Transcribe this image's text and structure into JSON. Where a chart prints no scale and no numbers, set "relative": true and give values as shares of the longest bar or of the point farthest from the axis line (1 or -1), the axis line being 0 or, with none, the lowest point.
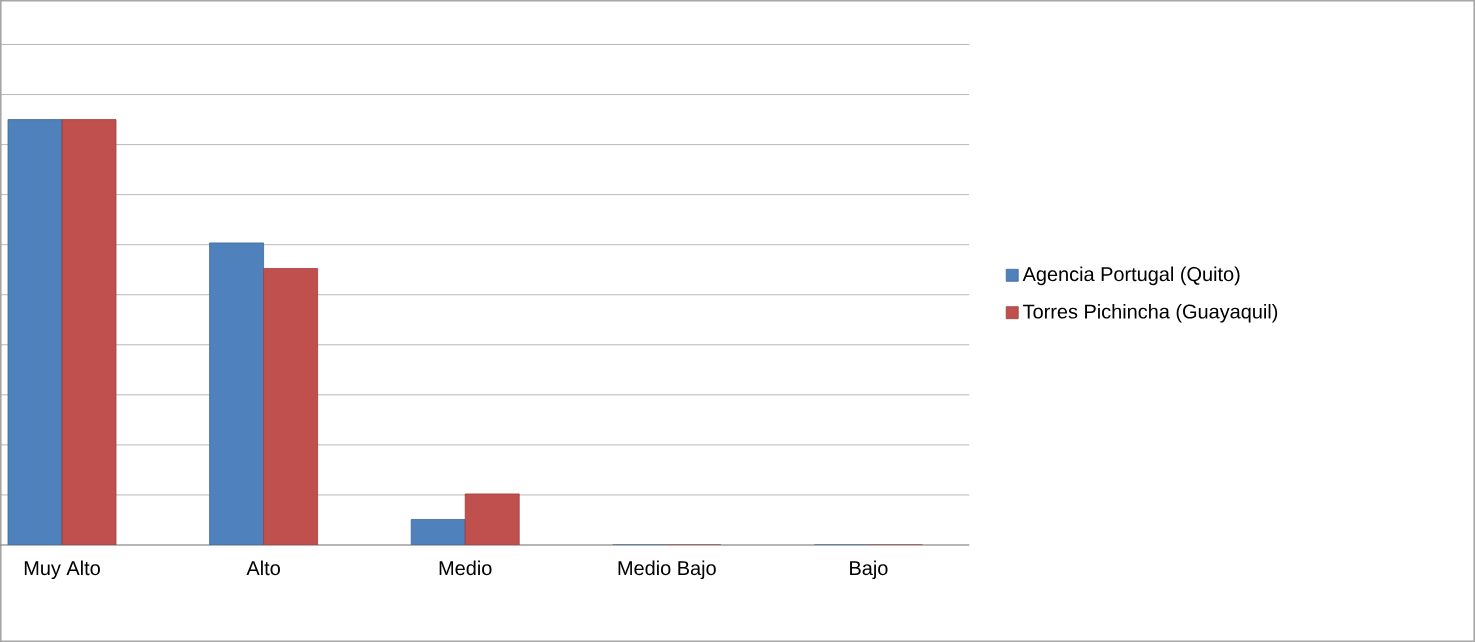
{
  "chart_data": {
    "type": "bar",
    "relative": true,
    "categories": [
      "Muy Alto",
      "Alto",
      "Medio",
      "Medio Bajo",
      "Bajo"
    ],
    "series": [
      {
        "name": "Agencia Portugal (Quito)",
        "color": "#4f81bd",
        "values": [
          1,
          0.71,
          0.06,
          0,
          0
        ]
      },
      {
        "name": "Torres Pichincha (Guayaquil)",
        "color": "#c0504d",
        "values": [
          1,
          0.65,
          0.12,
          0,
          0
        ]
      }
    ],
    "grid": "y",
    "legend": "right"
  }
}
